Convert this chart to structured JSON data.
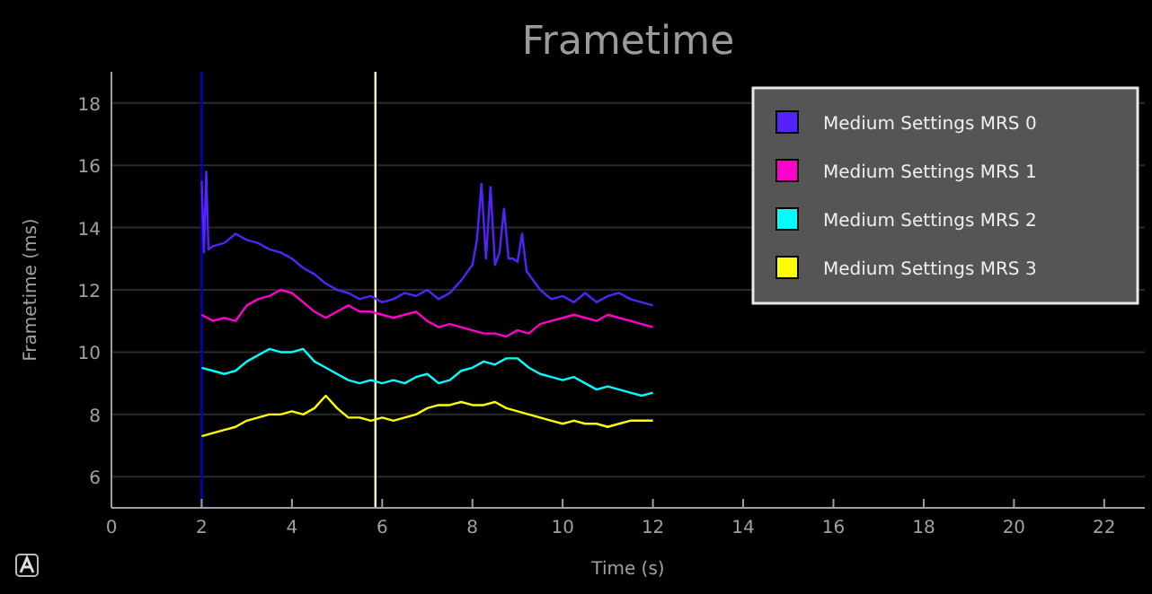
{
  "chart_data": {
    "type": "line",
    "title": "Frametime",
    "xlabel": "Time (s)",
    "ylabel": "Frametime (ms)",
    "xlim": [
      0,
      22.9
    ],
    "xticks": [
      0,
      2,
      4,
      6,
      8,
      10,
      12,
      14,
      16,
      18,
      20,
      22
    ],
    "ylim": [
      5,
      19
    ],
    "yticks": [
      6,
      8,
      10,
      12,
      14,
      16,
      18
    ],
    "grid": "y",
    "legend": "top right",
    "x": [
      2,
      2.25,
      2.5,
      2.75,
      3,
      3.25,
      3.5,
      3.75,
      4,
      4.25,
      4.5,
      4.75,
      5,
      5.25,
      5.5,
      5.75,
      6,
      6.25,
      6.5,
      6.75,
      7,
      7.25,
      7.5,
      7.75,
      8,
      8.25,
      8.5,
      8.75,
      9,
      9.25,
      9.5,
      9.75,
      10,
      10.25,
      10.5,
      10.75,
      11,
      11.25,
      11.5,
      11.75,
      12
    ],
    "series": [
      {
        "name": "Medium Settings MRS 0",
        "color": "#5522ff",
        "x": [
          2,
          2.05,
          2.1,
          2.15,
          2.25,
          2.5,
          2.75,
          3,
          3.25,
          3.5,
          3.75,
          4,
          4.25,
          4.5,
          4.75,
          5,
          5.25,
          5.5,
          5.75,
          6,
          6.25,
          6.5,
          6.75,
          7,
          7.25,
          7.5,
          7.75,
          8,
          8.1,
          8.2,
          8.3,
          8.4,
          8.5,
          8.6,
          8.7,
          8.8,
          8.9,
          9,
          9.1,
          9.2,
          9.3,
          9.5,
          9.75,
          10,
          10.25,
          10.5,
          10.75,
          11,
          11.25,
          11.5,
          11.75,
          12
        ],
        "values": [
          15.5,
          13.2,
          15.8,
          13.3,
          13.4,
          13.5,
          13.8,
          13.6,
          13.5,
          13.3,
          13.2,
          13.0,
          12.7,
          12.5,
          12.2,
          12.0,
          11.9,
          11.7,
          11.8,
          11.6,
          11.7,
          11.9,
          11.8,
          12.0,
          11.7,
          11.9,
          12.3,
          12.8,
          13.6,
          15.4,
          13.0,
          15.3,
          12.8,
          13.2,
          14.6,
          13.0,
          13.0,
          12.9,
          13.8,
          12.6,
          12.4,
          12.0,
          11.7,
          11.8,
          11.6,
          11.9,
          11.6,
          11.8,
          11.9,
          11.7,
          11.6,
          11.5
        ]
      },
      {
        "name": "Medium Settings MRS 1",
        "color": "#ff00cc",
        "values": [
          11.2,
          11.0,
          11.1,
          11.0,
          11.5,
          11.7,
          11.8,
          12.0,
          11.9,
          11.6,
          11.3,
          11.1,
          11.3,
          11.5,
          11.3,
          11.3,
          11.2,
          11.1,
          11.2,
          11.3,
          11.0,
          10.8,
          10.9,
          10.8,
          10.7,
          10.6,
          10.6,
          10.5,
          10.7,
          10.6,
          10.9,
          11.0,
          11.1,
          11.2,
          11.1,
          11.0,
          11.2,
          11.1,
          11.0,
          10.9,
          10.8
        ]
      },
      {
        "name": "Medium Settings MRS 2",
        "color": "#00ffff",
        "values": [
          9.5,
          9.4,
          9.3,
          9.4,
          9.7,
          9.9,
          10.1,
          10.0,
          10.0,
          10.1,
          9.7,
          9.5,
          9.3,
          9.1,
          9.0,
          9.1,
          9.0,
          9.1,
          9.0,
          9.2,
          9.3,
          9.0,
          9.1,
          9.4,
          9.5,
          9.7,
          9.6,
          9.8,
          9.8,
          9.5,
          9.3,
          9.2,
          9.1,
          9.2,
          9.0,
          8.8,
          8.9,
          8.8,
          8.7,
          8.6,
          8.7
        ]
      },
      {
        "name": "Medium Settings MRS 3",
        "color": "#ffff00",
        "values": [
          7.3,
          7.4,
          7.5,
          7.6,
          7.8,
          7.9,
          8.0,
          8.0,
          8.1,
          8.0,
          8.2,
          8.6,
          8.2,
          7.9,
          7.9,
          7.8,
          7.9,
          7.8,
          7.9,
          8.0,
          8.2,
          8.3,
          8.3,
          8.4,
          8.3,
          8.3,
          8.4,
          8.2,
          8.1,
          8.0,
          7.9,
          7.8,
          7.7,
          7.8,
          7.7,
          7.7,
          7.6,
          7.7,
          7.8,
          7.8,
          7.8
        ]
      }
    ],
    "ref_lines": [
      {
        "axis": "x",
        "value": 2,
        "color": "#0000cc"
      },
      {
        "axis": "x",
        "value": 5.85,
        "color": "#f5f5d0"
      }
    ]
  }
}
